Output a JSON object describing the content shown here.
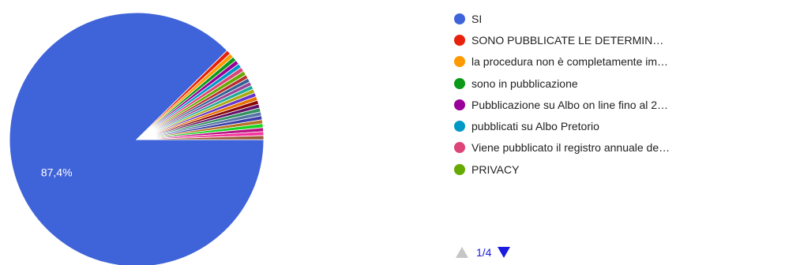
{
  "chart_data": {
    "type": "pie",
    "data_labels": [
      "87,4%"
    ],
    "slices": [
      {
        "name": "SI",
        "value": 87.4,
        "color": "#3f63d9"
      },
      {
        "name": "SONO PUBBLICATE LE DETERMIN…",
        "value": 0.55,
        "color": "#e8210b"
      },
      {
        "name": "la procedura non è completamente im…",
        "value": 0.55,
        "color": "#ff9900"
      },
      {
        "name": "sono in pubblicazione",
        "value": 0.55,
        "color": "#0b9a17"
      },
      {
        "name": "Pubblicazione su Albo on line fino al 2…",
        "value": 0.55,
        "color": "#990099"
      },
      {
        "name": "pubblicati su Albo Pretorio",
        "value": 0.55,
        "color": "#0099c6"
      },
      {
        "name": "Viene pubblicato il registro annuale de…",
        "value": 0.55,
        "color": "#dd4477"
      },
      {
        "name": "PRIVACY",
        "value": 0.55,
        "color": "#66aa00"
      }
    ],
    "other_slices": {
      "count": 17,
      "value_each": 0.5,
      "colors": [
        "#b82e2e",
        "#316395",
        "#994499",
        "#22aa99",
        "#aaaa11",
        "#6633cc",
        "#e67300",
        "#8b0707",
        "#651067",
        "#329262",
        "#5574a6",
        "#3b3eac",
        "#b77322",
        "#16d620",
        "#b91383",
        "#f4359e",
        "#9c5935"
      ]
    }
  },
  "legend": {
    "items": [
      {
        "label": "SI",
        "color": "#3f63d9"
      },
      {
        "label": "SONO PUBBLICATE LE DETERMIN…",
        "color": "#e8210b"
      },
      {
        "label": "la procedura non è completamente im…",
        "color": "#ff9900"
      },
      {
        "label": "sono in pubblicazione",
        "color": "#0b9a17"
      },
      {
        "label": "Pubblicazione su Albo on line fino al 2…",
        "color": "#990099"
      },
      {
        "label": "pubblicati su Albo Pretorio",
        "color": "#0099c6"
      },
      {
        "label": "Viene pubblicato il registro annuale de…",
        "color": "#dd4477"
      },
      {
        "label": "PRIVACY",
        "color": "#66aa00"
      }
    ]
  },
  "pager": {
    "text": "1/4"
  }
}
